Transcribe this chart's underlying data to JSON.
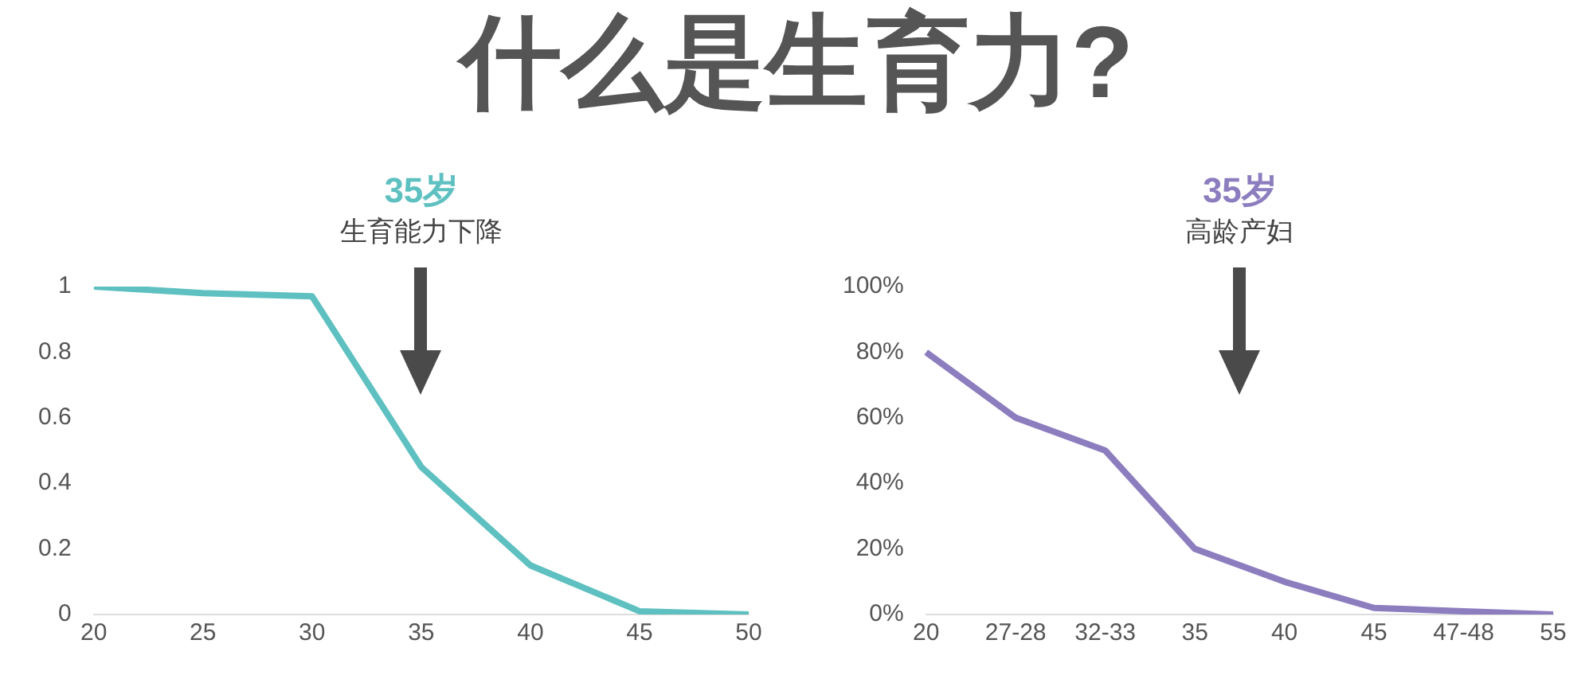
{
  "chart_data": [
    {
      "type": "line",
      "title": "什么是生育力?",
      "x": [
        20,
        25,
        30,
        35,
        40,
        45,
        50
      ],
      "xlim": [
        20,
        50
      ],
      "xticks": [
        20,
        25,
        30,
        35,
        40,
        45,
        50
      ],
      "ylim": [
        0,
        1
      ],
      "yticks": [
        0,
        0.2,
        0.4,
        0.6,
        0.8,
        1
      ],
      "grid": false,
      "legend": false,
      "marker": "none",
      "series": [
        {
          "color": "#5ec0c0",
          "values": [
            1,
            0.98,
            0.97,
            0.45,
            0.15,
            0.01,
            0
          ]
        }
      ],
      "annotations": [
        "35岁",
        "生育能力下降"
      ]
    },
    {
      "type": "line",
      "categories": [
        "20",
        "27-28",
        "32-33",
        "35",
        "40",
        "45",
        "47-48",
        "55"
      ],
      "ylim": [
        0,
        100
      ],
      "yticks": [
        {
          "value": 0,
          "label": "0%"
        },
        {
          "value": 20,
          "label": "20%"
        },
        {
          "value": 40,
          "label": "40%"
        },
        {
          "value": 60,
          "label": "60%"
        },
        {
          "value": 80,
          "label": "80%"
        },
        {
          "value": 100,
          "label": "100%"
        }
      ],
      "grid": false,
      "legend": false,
      "marker": "none",
      "series": [
        {
          "color": "#8c7dbf",
          "values": [
            80,
            60,
            50,
            20,
            10,
            2,
            1,
            0
          ]
        }
      ],
      "annotations": [
        "35岁",
        "高龄产妇"
      ]
    }
  ]
}
